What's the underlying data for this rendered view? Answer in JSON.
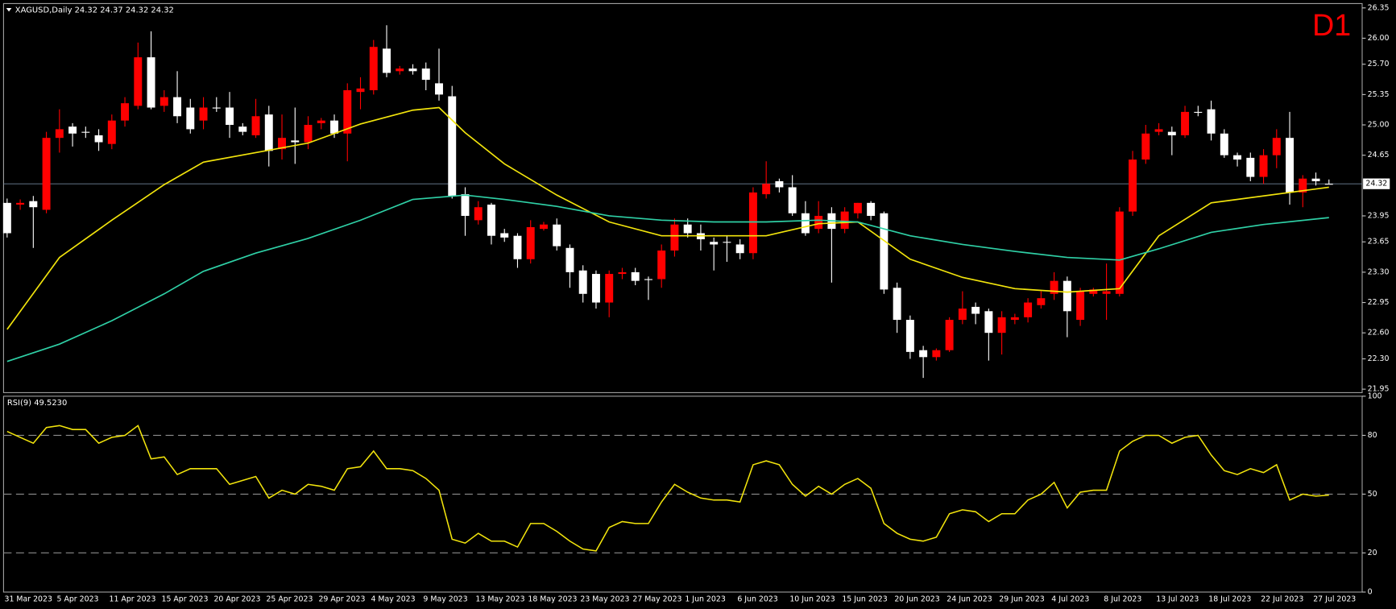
{
  "chart_data": [
    {
      "type": "candlestick",
      "title": "XAGUSD,Daily  24.32 24.37 24.32 24.32",
      "timeframe": "D1",
      "categories": [
        "31 Mar 2023",
        null,
        null,
        null,
        "5 Apr 2023",
        null,
        null,
        null,
        "11 Apr 2023",
        null,
        null,
        null,
        "15 Apr 2023",
        null,
        null,
        null,
        "20 Apr 2023",
        null,
        null,
        null,
        "25 Apr 2023",
        null,
        null,
        null,
        "29 Apr 2023",
        null,
        null,
        null,
        "4 May 2023",
        null,
        null,
        null,
        "9 May 2023",
        null,
        null,
        null,
        "13 May 2023",
        null,
        null,
        null,
        "18 May 2023",
        null,
        null,
        null,
        "23 May 2023",
        null,
        null,
        null,
        "27 May 2023",
        null,
        null,
        null,
        "1 Jun 2023",
        null,
        null,
        null,
        "6 Jun 2023",
        null,
        null,
        null,
        "10 Jun 2023",
        null,
        null,
        null,
        "15 Jun 2023",
        null,
        null,
        null,
        "20 Jun 2023",
        null,
        null,
        null,
        "24 Jun 2023",
        null,
        null,
        null,
        "29 Jun 2023",
        null,
        null,
        null,
        "4 Jul 2023",
        null,
        null,
        null,
        "8 Jul 2023",
        null,
        null,
        null,
        "13 Jul 2023",
        null,
        null,
        null,
        "18 Jul 2023",
        null,
        null,
        null,
        "22 Jul 2023",
        null,
        null,
        null,
        "27 Jul 2023",
        null
      ],
      "ohlc": [
        [
          24.1,
          24.15,
          23.7,
          23.75
        ],
        [
          24.08,
          24.14,
          24.02,
          24.1
        ],
        [
          24.12,
          24.18,
          23.58,
          24.05
        ],
        [
          24.02,
          24.92,
          23.98,
          24.85
        ],
        [
          24.85,
          25.18,
          24.68,
          24.95
        ],
        [
          24.98,
          25.02,
          24.75,
          24.9
        ],
        [
          24.92,
          24.98,
          24.85,
          24.92
        ],
        [
          24.88,
          24.95,
          24.7,
          24.8
        ],
        [
          24.78,
          25.12,
          24.72,
          25.05
        ],
        [
          25.05,
          25.32,
          24.98,
          25.25
        ],
        [
          25.22,
          25.95,
          25.18,
          25.78
        ],
        [
          25.78,
          26.08,
          25.18,
          25.2
        ],
        [
          25.22,
          25.4,
          25.15,
          25.32
        ],
        [
          25.32,
          25.62,
          25.02,
          25.1
        ],
        [
          25.2,
          25.3,
          24.9,
          24.95
        ],
        [
          25.05,
          25.32,
          24.95,
          25.2
        ],
        [
          25.2,
          25.32,
          25.15,
          25.2
        ],
        [
          25.2,
          25.38,
          24.85,
          25.0
        ],
        [
          24.98,
          25.02,
          24.88,
          24.92
        ],
        [
          24.88,
          25.3,
          24.85,
          25.1
        ],
        [
          25.12,
          25.22,
          24.52,
          24.7
        ],
        [
          24.72,
          25.12,
          24.6,
          24.85
        ],
        [
          24.82,
          25.2,
          24.55,
          24.8
        ],
        [
          24.8,
          25.1,
          24.72,
          25.0
        ],
        [
          25.02,
          25.08,
          24.95,
          25.05
        ],
        [
          25.05,
          25.12,
          24.85,
          24.9
        ],
        [
          24.9,
          25.48,
          24.58,
          25.4
        ],
        [
          25.38,
          25.55,
          25.18,
          25.42
        ],
        [
          25.4,
          25.98,
          25.35,
          25.9
        ],
        [
          25.88,
          26.15,
          25.55,
          25.6
        ],
        [
          25.62,
          25.68,
          25.58,
          25.65
        ],
        [
          25.65,
          25.7,
          25.58,
          25.62
        ],
        [
          25.65,
          25.72,
          25.4,
          25.52
        ],
        [
          25.48,
          25.88,
          25.28,
          25.35
        ],
        [
          25.33,
          25.45,
          24.15,
          24.18
        ],
        [
          24.2,
          24.28,
          23.72,
          23.95
        ],
        [
          23.9,
          24.12,
          23.85,
          24.05
        ],
        [
          24.08,
          24.1,
          23.62,
          23.72
        ],
        [
          23.75,
          23.8,
          23.65,
          23.7
        ],
        [
          23.72,
          23.75,
          23.35,
          23.45
        ],
        [
          23.45,
          23.9,
          23.4,
          23.82
        ],
        [
          23.8,
          23.88,
          23.78,
          23.85
        ],
        [
          23.85,
          23.92,
          23.55,
          23.6
        ],
        [
          23.58,
          23.62,
          23.12,
          23.3
        ],
        [
          23.32,
          23.38,
          22.95,
          23.05
        ],
        [
          23.28,
          23.32,
          22.88,
          22.95
        ],
        [
          22.95,
          23.32,
          22.78,
          23.28
        ],
        [
          23.28,
          23.35,
          23.22,
          23.3
        ],
        [
          23.3,
          23.35,
          23.15,
          23.2
        ],
        [
          23.22,
          23.25,
          22.98,
          23.22
        ],
        [
          23.22,
          23.62,
          23.12,
          23.55
        ],
        [
          23.55,
          23.92,
          23.48,
          23.85
        ],
        [
          23.85,
          23.92,
          23.7,
          23.75
        ],
        [
          23.75,
          23.85,
          23.55,
          23.68
        ],
        [
          23.65,
          23.7,
          23.32,
          23.62
        ],
        [
          23.65,
          23.72,
          23.42,
          23.65
        ],
        [
          23.62,
          23.68,
          23.45,
          23.52
        ],
        [
          23.52,
          24.28,
          23.45,
          24.22
        ],
        [
          24.2,
          24.58,
          24.15,
          24.32
        ],
        [
          24.35,
          24.38,
          24.22,
          24.28
        ],
        [
          24.28,
          24.42,
          23.95,
          23.98
        ],
        [
          23.98,
          24.12,
          23.72,
          23.75
        ],
        [
          23.8,
          24.12,
          23.75,
          23.95
        ],
        [
          23.98,
          24.05,
          23.18,
          23.8
        ],
        [
          23.8,
          24.05,
          23.75,
          24.0
        ],
        [
          23.98,
          24.1,
          23.92,
          24.1
        ],
        [
          24.1,
          24.12,
          23.9,
          23.95
        ],
        [
          23.98,
          24.0,
          23.05,
          23.1
        ],
        [
          23.12,
          23.18,
          22.6,
          22.75
        ],
        [
          22.75,
          22.8,
          22.3,
          22.38
        ],
        [
          22.4,
          22.45,
          22.08,
          22.32
        ],
        [
          22.32,
          22.42,
          22.28,
          22.4
        ],
        [
          22.4,
          22.78,
          22.38,
          22.75
        ],
        [
          22.75,
          23.08,
          22.7,
          22.88
        ],
        [
          22.9,
          22.95,
          22.7,
          22.82
        ],
        [
          22.85,
          22.88,
          22.28,
          22.6
        ],
        [
          22.6,
          22.85,
          22.35,
          22.78
        ],
        [
          22.75,
          22.82,
          22.7,
          22.78
        ],
        [
          22.78,
          23.0,
          22.72,
          22.95
        ],
        [
          22.92,
          23.08,
          22.88,
          23.0
        ],
        [
          23.05,
          23.3,
          22.98,
          23.2
        ],
        [
          23.2,
          23.25,
          22.55,
          22.85
        ],
        [
          22.75,
          23.12,
          22.68,
          23.08
        ],
        [
          23.05,
          23.12,
          23.02,
          23.1
        ],
        [
          23.05,
          23.4,
          22.75,
          23.08
        ],
        [
          23.05,
          24.05,
          23.02,
          24.0
        ],
        [
          24.0,
          24.7,
          23.95,
          24.6
        ],
        [
          24.6,
          25.0,
          24.55,
          24.9
        ],
        [
          24.92,
          25.02,
          24.88,
          24.95
        ],
        [
          24.92,
          24.98,
          24.65,
          24.88
        ],
        [
          24.88,
          25.22,
          24.85,
          25.15
        ],
        [
          25.15,
          25.22,
          25.1,
          25.15
        ],
        [
          25.18,
          25.28,
          24.82,
          24.9
        ],
        [
          24.9,
          24.95,
          24.62,
          24.65
        ],
        [
          24.65,
          24.68,
          24.52,
          24.6
        ],
        [
          24.62,
          24.68,
          24.35,
          24.4
        ],
        [
          24.4,
          24.72,
          24.32,
          24.65
        ],
        [
          24.65,
          24.95,
          24.5,
          24.85
        ],
        [
          24.85,
          25.15,
          24.08,
          24.22
        ],
        [
          24.22,
          24.42,
          24.05,
          24.38
        ],
        [
          24.38,
          24.45,
          24.3,
          24.35
        ],
        [
          24.32,
          24.37,
          24.32,
          24.32
        ]
      ],
      "up_color": "#ff0000",
      "down_color": "#ffffff",
      "series": [
        {
          "color": "#f2e40c",
          "x": [
            0,
            4,
            8,
            12,
            15,
            19,
            23,
            27,
            31,
            33,
            35,
            38,
            42,
            46,
            50,
            54,
            58,
            62,
            65,
            69,
            73,
            77,
            81,
            85,
            88,
            92,
            101
          ],
          "values": [
            22.64,
            23.47,
            23.9,
            24.31,
            24.57,
            24.68,
            24.79,
            25.01,
            25.17,
            25.2,
            24.91,
            24.55,
            24.19,
            23.88,
            23.72,
            23.72,
            23.72,
            23.86,
            23.88,
            23.45,
            23.24,
            23.11,
            23.07,
            23.11,
            23.72,
            24.1,
            24.28
          ]
        },
        {
          "color": "#2fd0a6",
          "x": [
            0,
            4,
            8,
            12,
            15,
            19,
            23,
            27,
            31,
            35,
            38,
            42,
            46,
            50,
            54,
            58,
            62,
            65,
            69,
            73,
            77,
            81,
            85,
            88,
            92,
            96,
            101
          ],
          "values": [
            22.27,
            22.47,
            22.74,
            23.05,
            23.31,
            23.52,
            23.69,
            23.9,
            24.14,
            24.19,
            24.14,
            24.06,
            23.95,
            23.9,
            23.88,
            23.88,
            23.9,
            23.88,
            23.72,
            23.62,
            23.54,
            23.47,
            23.44,
            23.57,
            23.76,
            23.85,
            23.93
          ]
        }
      ],
      "ylim": [
        21.91,
        26.4
      ],
      "yticks": [
        26.35,
        {
          "value": 26.0,
          "label": "26.00"
        },
        {
          "value": 25.7,
          "label": "25.70"
        },
        25.35,
        {
          "value": 25.0,
          "label": "25.00"
        },
        24.65,
        23.95,
        23.65,
        {
          "value": 23.3,
          "label": "23.30"
        },
        22.95,
        {
          "value": 22.6,
          "label": "22.60"
        },
        {
          "value": 22.3,
          "label": "22.30"
        },
        21.95
      ],
      "last_price": 24.32,
      "last_price_color": "#6f8499"
    },
    {
      "type": "line",
      "title": "RSI(9) 49.5230",
      "color": "#f2e40c",
      "values": [
        82,
        79,
        76,
        84,
        85,
        83,
        83,
        76,
        79,
        80,
        85,
        68,
        69,
        60,
        63,
        63,
        63,
        55,
        57,
        59,
        48,
        52,
        50,
        55,
        54,
        52,
        63,
        64,
        72,
        63,
        63,
        62,
        58,
        52,
        27,
        25,
        30,
        26,
        26,
        23,
        35,
        35,
        31,
        26,
        22,
        21,
        33,
        36,
        35,
        35,
        46,
        55,
        51,
        48,
        47,
        47,
        46,
        65,
        67,
        65,
        55,
        49,
        54,
        50,
        55,
        58,
        53,
        35,
        30,
        27,
        26,
        28,
        40,
        42,
        41,
        36,
        40,
        40,
        47,
        50,
        56,
        43,
        51,
        52,
        52,
        72,
        77,
        80,
        80,
        76,
        79,
        80,
        70,
        62,
        60,
        63,
        61,
        65,
        47,
        50,
        49,
        49.52
      ],
      "ylim": [
        0,
        100
      ],
      "yticks": [
        100,
        80,
        50,
        20,
        0
      ],
      "levels": [
        80,
        50,
        20
      ],
      "level_color": "#8c8c8c"
    }
  ]
}
